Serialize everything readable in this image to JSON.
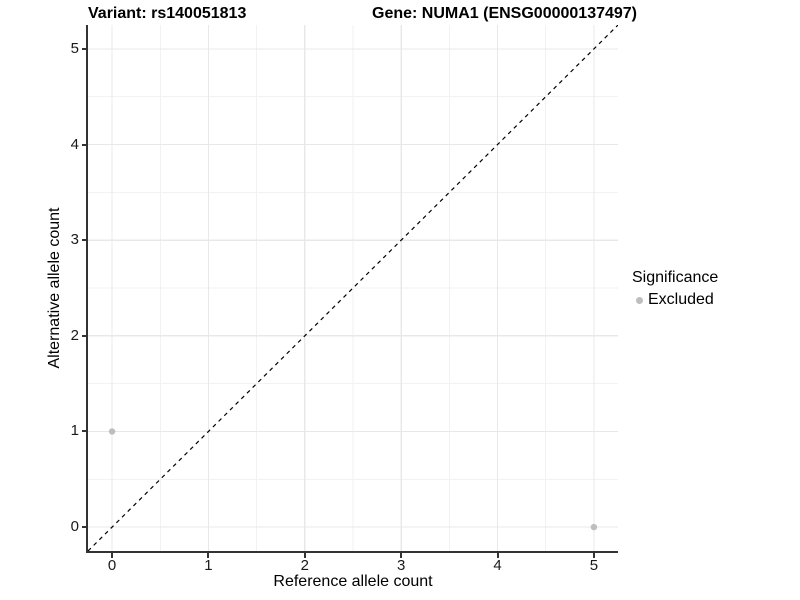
{
  "chart_data": {
    "type": "scatter",
    "title_left": "Variant: rs140051813",
    "title_right": "Gene: NUMA1 (ENSG00000137497)",
    "xlabel": "Reference allele count",
    "ylabel": "Alternative allele count",
    "xlim": [
      -0.25,
      5.25
    ],
    "ylim": [
      -0.25,
      5.25
    ],
    "xticks": [
      0,
      1,
      2,
      3,
      4,
      5
    ],
    "yticks": [
      0,
      1,
      2,
      3,
      4,
      5
    ],
    "minor_gridlines": [
      0.5,
      1.5,
      2.5,
      3.5,
      4.5
    ],
    "grid": "major at integers, minor at half-integers, light grey on white",
    "identity_line": {
      "style": "dashed",
      "equation": "y = x",
      "from": -0.25,
      "to": 5.25
    },
    "series": [
      {
        "name": "Excluded",
        "color": "#bebebe",
        "marker": "circle",
        "points": [
          {
            "x": 0,
            "y": 1
          },
          {
            "x": 5,
            "y": 0
          }
        ]
      }
    ],
    "legend": {
      "title": "Significance",
      "position": "right",
      "items": [
        {
          "label": "Excluded",
          "color": "#bebebe"
        }
      ]
    }
  },
  "colors": {
    "background": "#ffffff",
    "axis_line": "#333333",
    "tick_mark": "#333333",
    "grid_major": "#e8e8e8",
    "grid_minor": "#f2f2f2",
    "identity_line": "#000000",
    "point": "#bebebe",
    "tick_label": "#1a1a1a",
    "text": "#000000"
  }
}
